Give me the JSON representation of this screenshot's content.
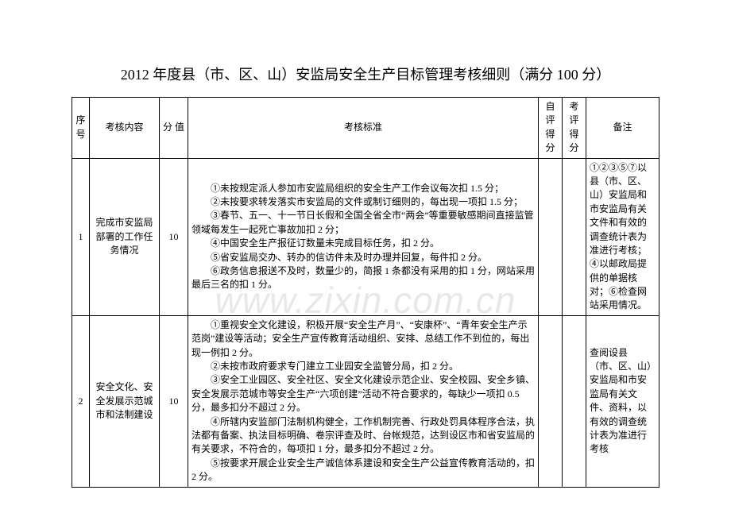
{
  "title": "2012 年度县（市、区、山）安监局安全生产目标管理考核细则（满分 100 分）",
  "watermark": "www.zixin.com.cn",
  "headers": {
    "seq": "序号",
    "category": "考核内容",
    "score": "分 值",
    "standard": "考核标准",
    "self": "自评得分",
    "eval": "考评得分",
    "note": "备注"
  },
  "rows": [
    {
      "seq": "1",
      "category": "完成市安监局部署的工作任务情况",
      "score": "10",
      "standard_lines": [
        "①未按规定派人参加市安监局组织的安全生产工作会议每次扣 1.5 分；",
        "②未按要求转发落实市安监局的文件或制订细则的，每出现一项扣 1.5 分；",
        "③春节、五一、十一节日长假和全国全省全市“两会”等重要敏感期间直接监管领域每发生一起死亡事故加扣 2 分；",
        "④中国安全生产报征订数量未完成目标任务，扣 2 分。",
        "⑤省安监局交办、转办的信访件未及时办理并回复，每件扣 2 分。",
        "⑥政务信息报送不及时，数量少的，简报 1 条都没有采用的扣 1 分，网站采用最后三名的扣 1 分。"
      ],
      "self": "",
      "eval": "",
      "note": "①②③⑤⑦以县（市、区、山）安监局和市安监局有关文件和有效的调查统计表为准进行考核；④以邮政局提供的单据核对；⑥检查网站采用情况。"
    },
    {
      "seq": "2",
      "category": "安全文化、安全发展示范城市和法制建设",
      "score": "10",
      "standard_lines": [
        "①重视安全文化建设，积极开展“安全生产月”、“安康杯”、“青年安全生产示范岗”建设等活动；安全生产宣传教育活动组织、安排、总结工作不到位的，每出现一例扣 2 分。",
        "②未按市政府要求专门建立工业园安全监管分局，扣 2 分。",
        "③安全工业园区、安全社区、安全文化建设示范企业、安全校园、安全乡镇、安全发展示范城市等安全生产“六项创建”活动不符合要求的，每缺少一项扣 0.5 分，最多扣分不超过 2 分。",
        "④所辖内安监部门法制机构健全，工作机制完善、行政处罚具体程序合法，执法都有备案、执法目标明确、卷宗评查及时、台帐规范，达到设区市和省安监局的有关要求，不符合的，每项扣 1 分，最多扣分不超过 2 分。",
        "⑤按要求开展企业安全生产诚信体系建设和安全生产公益宣传教育活动的，扣 2 分。"
      ],
      "self": "",
      "eval": "",
      "note": "查阅设县（市、区、山）安监局和市安监局有关文件、资料，以有效的调查统计表为准进行考核"
    }
  ]
}
